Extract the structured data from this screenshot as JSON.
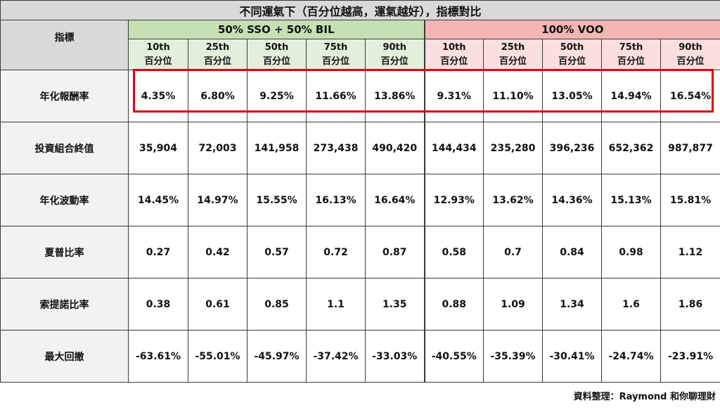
{
  "title": "不同運氣下（百分位越高，運氣越好），指標對比",
  "metric_header": "指標",
  "groups": [
    {
      "name": "50% SSO + 50% BIL",
      "color": "#c6e0b4"
    },
    {
      "name": "100% VOO",
      "color": "#f4b5b5"
    }
  ],
  "percentiles": [
    {
      "top": "10th",
      "bottom": "百分位"
    },
    {
      "top": "25th",
      "bottom": "百分位"
    },
    {
      "top": "50th",
      "bottom": "百分位"
    },
    {
      "top": "75th",
      "bottom": "百分位"
    },
    {
      "top": "90th",
      "bottom": "百分位"
    }
  ],
  "rows": [
    {
      "label": "年化報酬率",
      "values": [
        "4.35%",
        "6.80%",
        "9.25%",
        "11.66%",
        "13.86%",
        "9.31%",
        "11.10%",
        "13.05%",
        "14.94%",
        "16.54%"
      ],
      "highlighted": true
    },
    {
      "label": "投資組合終值",
      "values": [
        "35,904",
        "72,003",
        "141,958",
        "273,438",
        "490,420",
        "144,434",
        "235,280",
        "396,236",
        "652,362",
        "987,877"
      ]
    },
    {
      "label": "年化波動率",
      "values": [
        "14.45%",
        "14.97%",
        "15.55%",
        "16.13%",
        "16.64%",
        "12.93%",
        "13.62%",
        "14.36%",
        "15.13%",
        "15.81%"
      ]
    },
    {
      "label": "夏普比率",
      "values": [
        "0.27",
        "0.42",
        "0.57",
        "0.72",
        "0.87",
        "0.58",
        "0.7",
        "0.84",
        "0.98",
        "1.12"
      ]
    },
    {
      "label": "索提諾比率",
      "values": [
        "0.38",
        "0.61",
        "0.85",
        "1.1",
        "1.35",
        "0.88",
        "1.09",
        "1.34",
        "1.6",
        "1.86"
      ]
    },
    {
      "label": "最大回撤",
      "values": [
        "-63.61%",
        "-55.01%",
        "-45.97%",
        "-37.42%",
        "-33.03%",
        "-40.55%",
        "-35.39%",
        "-30.41%",
        "-24.74%",
        "-23.91%"
      ]
    }
  ],
  "highlight_color": "#e0000f",
  "footer": "資料整理：Raymond 和你聊理財"
}
